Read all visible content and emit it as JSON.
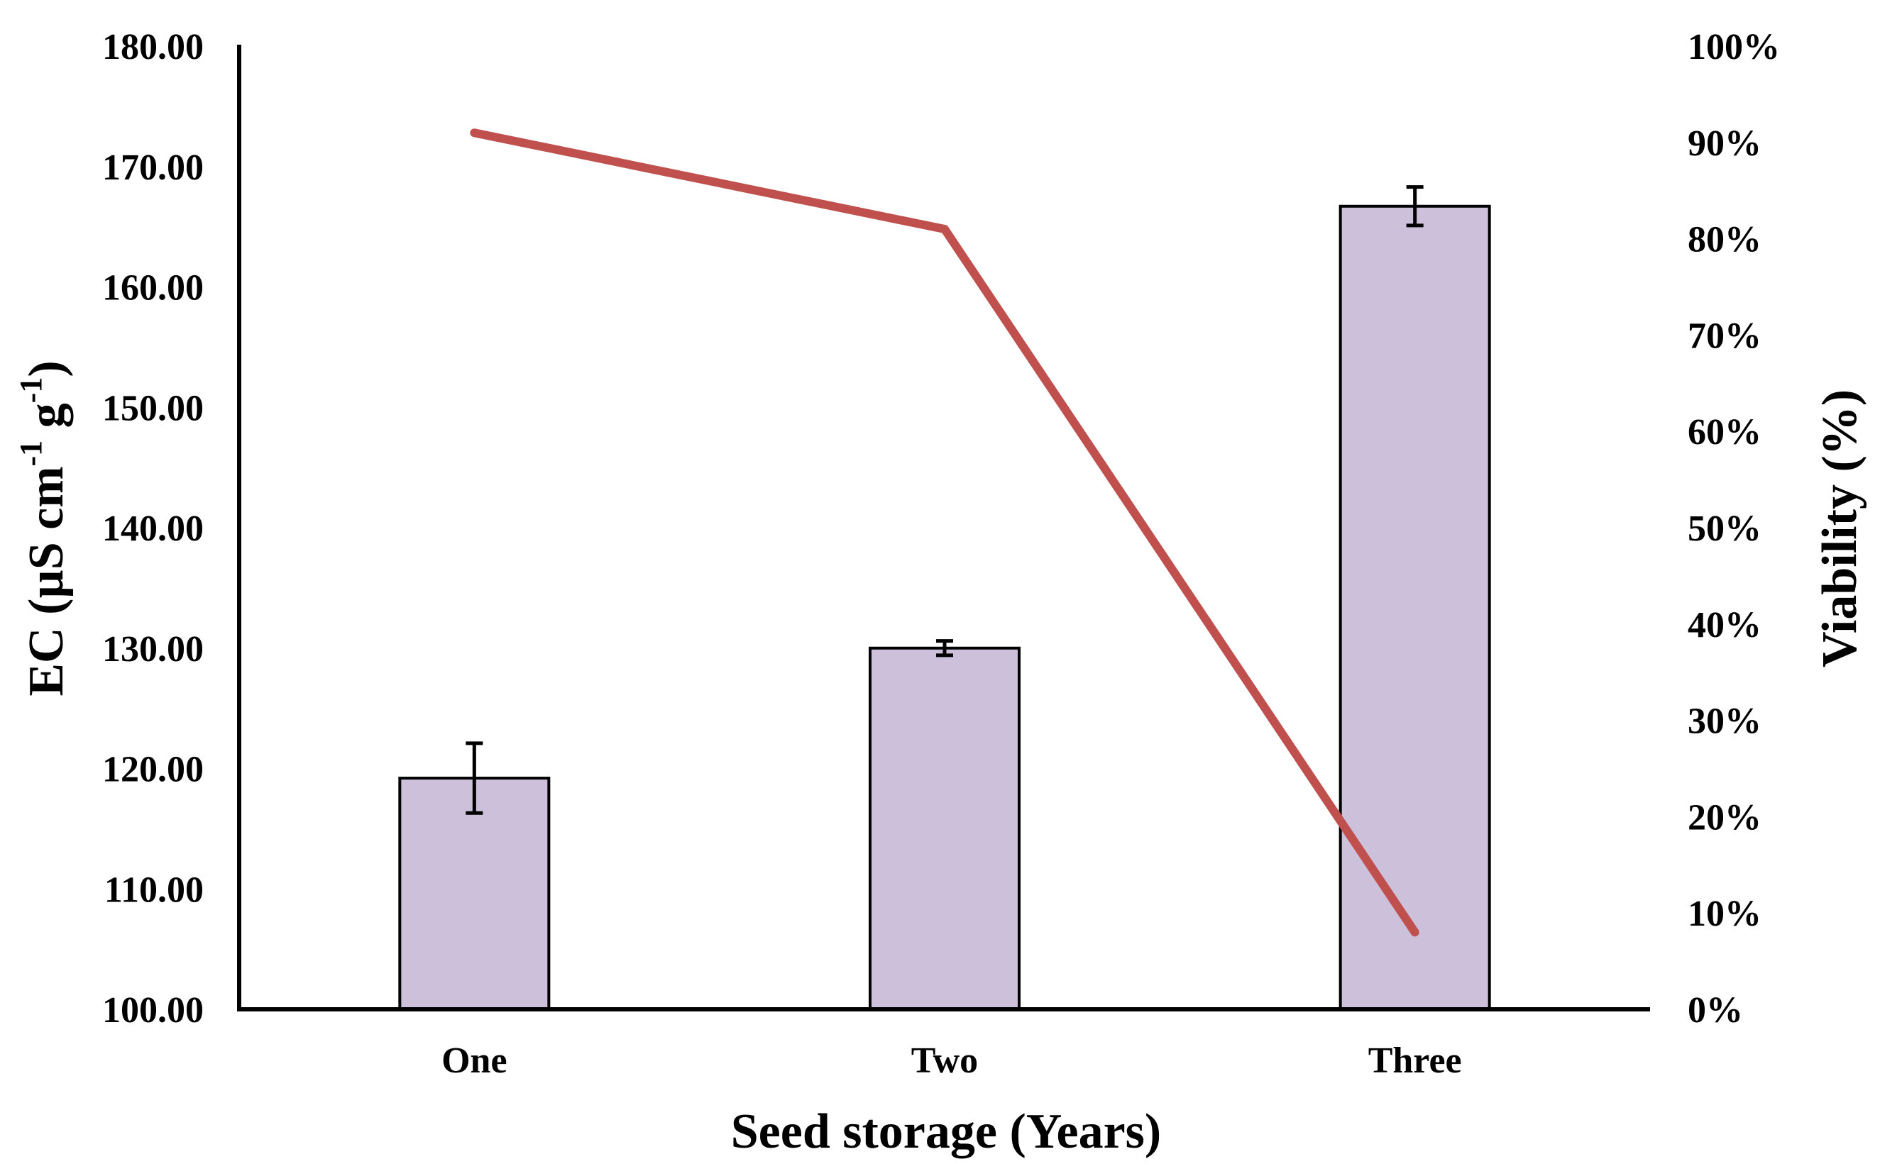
{
  "chart_data": {
    "type": "bar+line",
    "categories": [
      "One",
      "Two",
      "Three"
    ],
    "series": [
      {
        "name": "EC",
        "kind": "bar",
        "axis": "left",
        "values": [
          119.2,
          130.0,
          166.7
        ],
        "errors": [
          2.9,
          0.6,
          1.6
        ],
        "color": "#CCC0DA",
        "edge_color": "#000000"
      },
      {
        "name": "Viability",
        "kind": "line",
        "axis": "right",
        "values": [
          0.91,
          0.81,
          0.08
        ],
        "color": "#C0504D"
      }
    ],
    "left_axis": {
      "label_main": "EC (µS cm",
      "label_sup1": "-1",
      "label_mid": " g",
      "label_sup2": "-1",
      "label_end": ")",
      "ylim": [
        100,
        180
      ],
      "ticks": [
        "100.00",
        "110.00",
        "120.00",
        "130.00",
        "140.00",
        "150.00",
        "160.00",
        "170.00",
        "180.00"
      ]
    },
    "right_axis": {
      "label": "Viability (%)",
      "ylim": [
        0,
        1
      ],
      "ticks": [
        "0%",
        "10%",
        "20%",
        "30%",
        "40%",
        "50%",
        "60%",
        "70%",
        "80%",
        "90%",
        "100%"
      ]
    },
    "xlabel": "Seed storage (Years)",
    "title": "",
    "grid": false,
    "legend": "none"
  }
}
